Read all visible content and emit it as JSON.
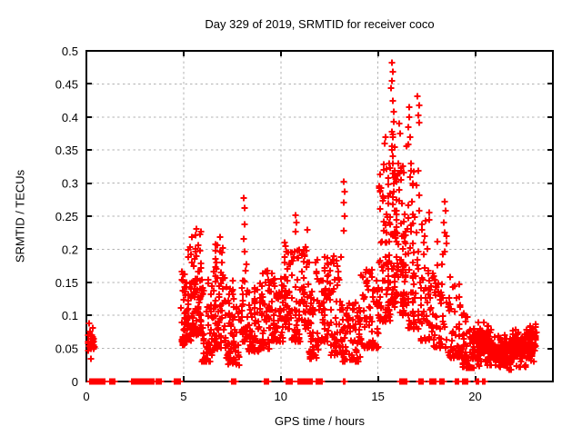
{
  "figure": {
    "background": "#ffffff",
    "text_color": "#000000",
    "border_color": "#000000",
    "grid_color": "#b3b3b3",
    "accent_color": "#ff0000"
  },
  "chart_data": {
    "type": "scatter",
    "title": "Day 329 of 2019, SRMTID for receiver coco",
    "xlabel": "GPS time / hours",
    "ylabel": "SRMTID / TECUs",
    "xlim": [
      0,
      24
    ],
    "ylim": [
      0,
      0.5
    ],
    "xticks": [
      0,
      5,
      10,
      15,
      20
    ],
    "xtick_labels": [
      "0",
      "5",
      "10",
      "15",
      "20"
    ],
    "yticks": [
      0,
      0.05,
      0.1,
      0.15,
      0.2,
      0.25,
      0.3,
      0.35,
      0.4,
      0.45,
      0.5
    ],
    "ytick_labels": [
      "0",
      "0.05",
      "0.1",
      "0.15",
      "0.2",
      "0.25",
      "0.3",
      "0.35",
      "0.4",
      "0.45",
      "0.5"
    ],
    "grid": true,
    "legend": "none",
    "marker": "plus",
    "marker_color": "#ff0000",
    "marker_size_px": 7,
    "seed": 329,
    "point_clusters": [
      [
        0.07,
        0.42,
        0.04,
        0.082,
        26,
        2
      ],
      [
        4.85,
        5.15,
        0.055,
        0.175,
        40,
        0
      ],
      [
        5.15,
        5.4,
        0.06,
        0.215,
        35,
        0
      ],
      [
        5.4,
        5.95,
        0.07,
        0.235,
        85,
        0
      ],
      [
        5.95,
        6.5,
        0.03,
        0.155,
        60,
        0
      ],
      [
        6.55,
        7.2,
        0.05,
        0.22,
        80,
        0
      ],
      [
        7.2,
        7.9,
        0.025,
        0.155,
        70,
        0
      ],
      [
        7.95,
        8.3,
        0.06,
        0.21,
        30,
        0
      ],
      [
        8.3,
        8.9,
        0.045,
        0.145,
        55,
        0
      ],
      [
        8.9,
        9.45,
        0.05,
        0.175,
        55,
        0
      ],
      [
        9.45,
        10.15,
        0.06,
        0.165,
        60,
        0
      ],
      [
        10.15,
        10.55,
        0.08,
        0.21,
        40,
        0
      ],
      [
        10.55,
        11.05,
        0.06,
        0.2,
        45,
        0
      ],
      [
        11.05,
        11.45,
        0.08,
        0.23,
        40,
        0
      ],
      [
        11.45,
        12.05,
        0.035,
        0.185,
        55,
        0
      ],
      [
        12.05,
        12.55,
        0.06,
        0.21,
        50,
        0
      ],
      [
        12.55,
        13.1,
        0.04,
        0.19,
        45,
        0
      ],
      [
        13.1,
        14.1,
        0.03,
        0.12,
        80,
        0
      ],
      [
        14.1,
        15.05,
        0.05,
        0.17,
        75,
        0
      ],
      [
        15.05,
        15.65,
        0.09,
        0.33,
        85,
        0
      ],
      [
        15.65,
        15.98,
        0.11,
        0.38,
        55,
        0
      ],
      [
        15.98,
        16.5,
        0.1,
        0.36,
        65,
        0
      ],
      [
        16.5,
        17.15,
        0.08,
        0.33,
        60,
        0
      ],
      [
        17.15,
        17.85,
        0.06,
        0.26,
        55,
        0
      ],
      [
        17.85,
        18.55,
        0.05,
        0.22,
        50,
        0
      ],
      [
        18.55,
        19.35,
        0.035,
        0.16,
        50,
        0
      ],
      [
        19.35,
        19.85,
        0.02,
        0.105,
        45,
        0
      ],
      [
        19.85,
        20.85,
        0.015,
        0.095,
        110,
        2
      ],
      [
        20.85,
        21.9,
        0.012,
        0.075,
        110,
        2
      ],
      [
        21.9,
        22.65,
        0.02,
        0.085,
        100,
        2
      ],
      [
        22.65,
        23.0,
        0.028,
        0.09,
        55,
        2
      ],
      [
        23.0,
        23.15,
        0.04,
        0.09,
        18,
        2
      ]
    ],
    "zero_segments": [
      [
        0.18,
        0.95,
        32
      ],
      [
        1.2,
        1.45,
        12
      ],
      [
        2.35,
        3.25,
        40
      ],
      [
        3.3,
        3.45,
        8
      ],
      [
        3.6,
        3.85,
        12
      ],
      [
        4.55,
        4.8,
        12
      ],
      [
        7.5,
        7.55,
        2
      ],
      [
        7.62,
        7.67,
        2
      ],
      [
        9.15,
        9.35,
        9
      ],
      [
        10.3,
        10.55,
        10
      ],
      [
        10.9,
        11.05,
        6
      ],
      [
        11.15,
        11.3,
        6
      ],
      [
        11.4,
        11.62,
        8
      ],
      [
        11.85,
        12.1,
        10
      ],
      [
        13.24,
        13.28,
        2
      ],
      [
        16.15,
        16.45,
        11
      ],
      [
        17.1,
        17.3,
        7
      ],
      [
        17.7,
        17.95,
        8
      ],
      [
        18.2,
        18.4,
        7
      ],
      [
        19.0,
        19.15,
        6
      ],
      [
        19.35,
        19.6,
        9
      ],
      [
        20.05,
        20.15,
        3
      ],
      [
        20.38,
        20.5,
        4
      ]
    ],
    "outlier_points": [
      [
        15.73,
        0.482
      ],
      [
        15.76,
        0.468
      ],
      [
        15.71,
        0.455
      ],
      [
        15.69,
        0.443
      ],
      [
        15.78,
        0.425
      ],
      [
        15.8,
        0.408
      ],
      [
        15.82,
        0.393
      ],
      [
        16.1,
        0.39
      ],
      [
        16.12,
        0.375
      ],
      [
        16.6,
        0.415
      ],
      [
        16.62,
        0.4
      ],
      [
        16.58,
        0.385
      ],
      [
        16.65,
        0.37
      ],
      [
        16.55,
        0.358
      ],
      [
        17.05,
        0.432
      ],
      [
        17.1,
        0.418
      ],
      [
        17.08,
        0.403
      ],
      [
        17.12,
        0.392
      ],
      [
        15.4,
        0.37
      ],
      [
        15.35,
        0.36
      ],
      [
        13.25,
        0.302
      ],
      [
        13.28,
        0.287
      ],
      [
        13.22,
        0.27
      ],
      [
        13.3,
        0.25
      ],
      [
        13.26,
        0.228
      ],
      [
        8.1,
        0.277
      ],
      [
        8.12,
        0.262
      ],
      [
        8.14,
        0.238
      ],
      [
        8.08,
        0.215
      ],
      [
        8.16,
        0.197
      ],
      [
        10.77,
        0.252
      ],
      [
        10.79,
        0.24
      ],
      [
        10.75,
        0.226
      ],
      [
        18.42,
        0.272
      ],
      [
        18.46,
        0.258
      ],
      [
        18.4,
        0.24
      ],
      [
        18.44,
        0.225
      ],
      [
        0.25,
        0.035
      ],
      [
        0.12,
        0.088
      ],
      [
        5.02,
        0.055
      ]
    ]
  }
}
